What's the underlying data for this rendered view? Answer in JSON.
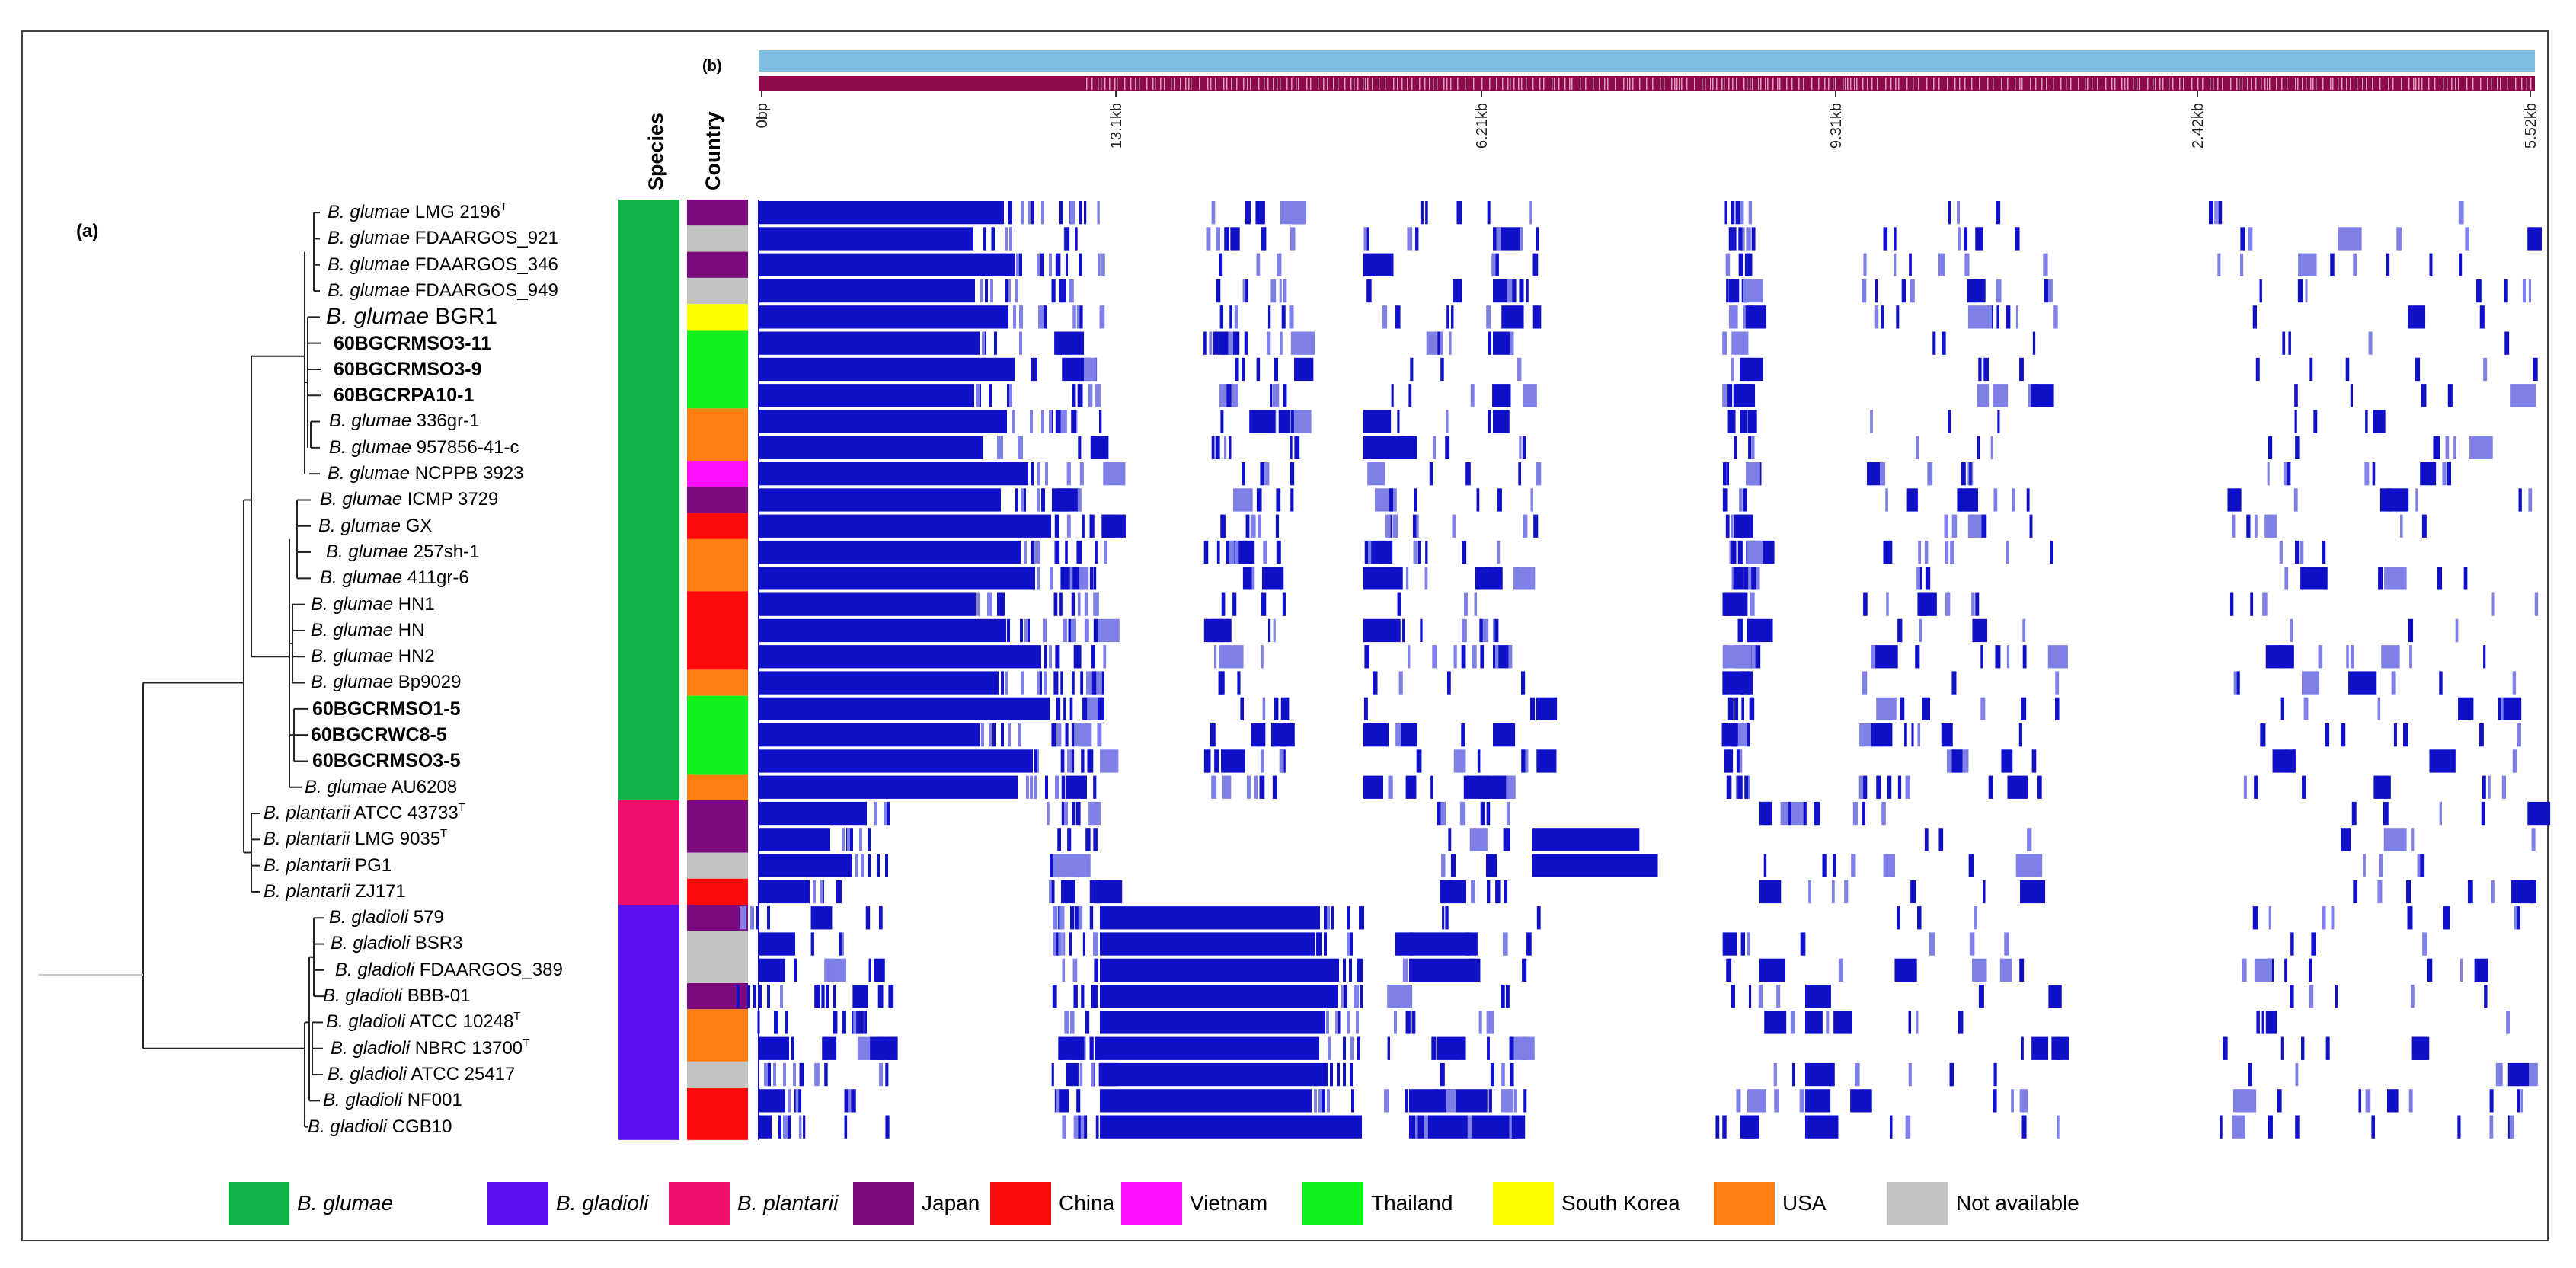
{
  "figure": {
    "panel_a_label": "(a)",
    "panel_b_label": "(b)",
    "species_header": "Species",
    "country_header": "Country",
    "ruler_ticks": [
      "0bp",
      "13.1kb",
      "6.21kb",
      "9.31kb",
      "2.42kb",
      "5.52kb"
    ]
  },
  "colors": {
    "species": {
      "glumae": "#10b24a",
      "gladioli": "#5b10f0",
      "plantarii": "#f20f6b"
    },
    "country": {
      "Japan": "#7a0a7e",
      "China": "#ff0a0a",
      "Vietnam": "#ff10ff",
      "Thailand": "#10f01a",
      "South Korea": "#ffff00",
      "USA": "#ff7f10",
      "NA": "#c2c2c2"
    },
    "bar_top": "#7fbfe0",
    "bar_bottom": "#8c0a4a",
    "heat": "#1010c8",
    "heat_light": "#7f7fe8"
  },
  "legend": [
    {
      "label": "B. glumae",
      "color": "#10b24a",
      "italic": true
    },
    {
      "label": "B. gladioli",
      "color": "#5b10f0",
      "italic": true
    },
    {
      "label": "B. plantarii",
      "color": "#f20f6b",
      "italic": true
    },
    {
      "label": "Japan",
      "color": "#7a0a7e",
      "italic": false
    },
    {
      "label": "China",
      "color": "#ff0a0a",
      "italic": false
    },
    {
      "label": "Vietnam",
      "color": "#ff10ff",
      "italic": false
    },
    {
      "label": "Thailand",
      "color": "#10f01a",
      "italic": false
    },
    {
      "label": "South Korea",
      "color": "#ffff00",
      "italic": false
    },
    {
      "label": "USA",
      "color": "#ff7f10",
      "italic": false
    },
    {
      "label": "Not available",
      "color": "#c2c2c2",
      "italic": false
    }
  ],
  "strains": [
    {
      "genus": "B. glumae",
      "name": "LMG 2196",
      "sup": "T",
      "species": "glumae",
      "country": "Japan",
      "style": "normal"
    },
    {
      "genus": "B. glumae",
      "name": "FDAARGOS_921",
      "sup": "",
      "species": "glumae",
      "country": "NA",
      "style": "normal"
    },
    {
      "genus": "B. glumae",
      "name": "FDAARGOS_346",
      "sup": "",
      "species": "glumae",
      "country": "Japan",
      "style": "normal"
    },
    {
      "genus": "B. glumae",
      "name": "FDAARGOS_949",
      "sup": "",
      "species": "glumae",
      "country": "NA",
      "style": "normal"
    },
    {
      "genus": "B. glumae",
      "name": "BGR1",
      "sup": "",
      "species": "glumae",
      "country": "South Korea",
      "style": "big"
    },
    {
      "genus": "",
      "name": "60BGCRMSO3-11",
      "sup": "",
      "species": "glumae",
      "country": "Thailand",
      "style": "bold"
    },
    {
      "genus": "",
      "name": "60BGCRMSO3-9",
      "sup": "",
      "species": "glumae",
      "country": "Thailand",
      "style": "bold"
    },
    {
      "genus": "",
      "name": "60BGCRPA10-1",
      "sup": "",
      "species": "glumae",
      "country": "Thailand",
      "style": "bold"
    },
    {
      "genus": "B. glumae",
      "name": "336gr-1",
      "sup": "",
      "species": "glumae",
      "country": "USA",
      "style": "normal"
    },
    {
      "genus": "B. glumae",
      "name": "957856-41-c",
      "sup": "",
      "species": "glumae",
      "country": "USA",
      "style": "normal"
    },
    {
      "genus": "B. glumae",
      "name": "NCPPB 3923",
      "sup": "",
      "species": "glumae",
      "country": "Vietnam",
      "style": "normal"
    },
    {
      "genus": "B. glumae",
      "name": "ICMP 3729",
      "sup": "",
      "species": "glumae",
      "country": "Japan",
      "style": "normal"
    },
    {
      "genus": "B. glumae",
      "name": "GX",
      "sup": "",
      "species": "glumae",
      "country": "China",
      "style": "normal"
    },
    {
      "genus": "B. glumae",
      "name": "257sh-1",
      "sup": "",
      "species": "glumae",
      "country": "USA",
      "style": "normal"
    },
    {
      "genus": "B. glumae",
      "name": "411gr-6",
      "sup": "",
      "species": "glumae",
      "country": "USA",
      "style": "normal"
    },
    {
      "genus": "B. glumae",
      "name": "HN1",
      "sup": "",
      "species": "glumae",
      "country": "China",
      "style": "normal"
    },
    {
      "genus": "B. glumae",
      "name": "HN",
      "sup": "",
      "species": "glumae",
      "country": "China",
      "style": "normal"
    },
    {
      "genus": "B. glumae",
      "name": "HN2",
      "sup": "",
      "species": "glumae",
      "country": "China",
      "style": "normal"
    },
    {
      "genus": "B. glumae",
      "name": "Bp9029",
      "sup": "",
      "species": "glumae",
      "country": "USA",
      "style": "normal"
    },
    {
      "genus": "",
      "name": "60BGCRMSO1-5",
      "sup": "",
      "species": "glumae",
      "country": "Thailand",
      "style": "bold"
    },
    {
      "genus": "",
      "name": "60BGCRWC8-5",
      "sup": "",
      "species": "glumae",
      "country": "Thailand",
      "style": "bold"
    },
    {
      "genus": "",
      "name": "60BGCRMSO3-5",
      "sup": "",
      "species": "glumae",
      "country": "Thailand",
      "style": "bold"
    },
    {
      "genus": "B. glumae",
      "name": "AU6208",
      "sup": "",
      "species": "glumae",
      "country": "USA",
      "style": "normal"
    },
    {
      "genus": "B. plantarii",
      "name": "ATCC 43733",
      "sup": "T",
      "species": "plantarii",
      "country": "Japan",
      "style": "normal"
    },
    {
      "genus": "B. plantarii",
      "name": "LMG 9035",
      "sup": "T",
      "species": "plantarii",
      "country": "Japan",
      "style": "normal"
    },
    {
      "genus": "B. plantarii",
      "name": "PG1",
      "sup": "",
      "species": "plantarii",
      "country": "NA",
      "style": "normal"
    },
    {
      "genus": "B. plantarii",
      "name": "ZJ171",
      "sup": "",
      "species": "plantarii",
      "country": "China",
      "style": "normal"
    },
    {
      "genus": "B. gladioli",
      "name": "579",
      "sup": "",
      "species": "gladioli",
      "country": "Japan",
      "style": "normal"
    },
    {
      "genus": "B. gladioli",
      "name": "BSR3",
      "sup": "",
      "species": "gladioli",
      "country": "NA",
      "style": "normal"
    },
    {
      "genus": "B. gladioli",
      "name": "FDAARGOS_389",
      "sup": "",
      "species": "gladioli",
      "country": "NA",
      "style": "normal"
    },
    {
      "genus": "B. gladioli",
      "name": "BBB-01",
      "sup": "",
      "species": "gladioli",
      "country": "Japan",
      "style": "normal"
    },
    {
      "genus": "B. gladioli",
      "name": "ATCC 10248",
      "sup": "T",
      "species": "gladioli",
      "country": "USA",
      "style": "normal"
    },
    {
      "genus": "B. gladioli",
      "name": "NBRC 13700",
      "sup": "T",
      "species": "gladioli",
      "country": "USA",
      "style": "normal"
    },
    {
      "genus": "B. gladioli",
      "name": "ATCC 25417",
      "sup": "",
      "species": "gladioli",
      "country": "NA",
      "style": "normal"
    },
    {
      "genus": "B. gladioli",
      "name": "NF001",
      "sup": "",
      "species": "gladioli",
      "country": "China",
      "style": "normal"
    },
    {
      "genus": "B. gladioli",
      "name": "CGB10",
      "sup": "",
      "species": "gladioli",
      "country": "China",
      "style": "normal"
    }
  ]
}
